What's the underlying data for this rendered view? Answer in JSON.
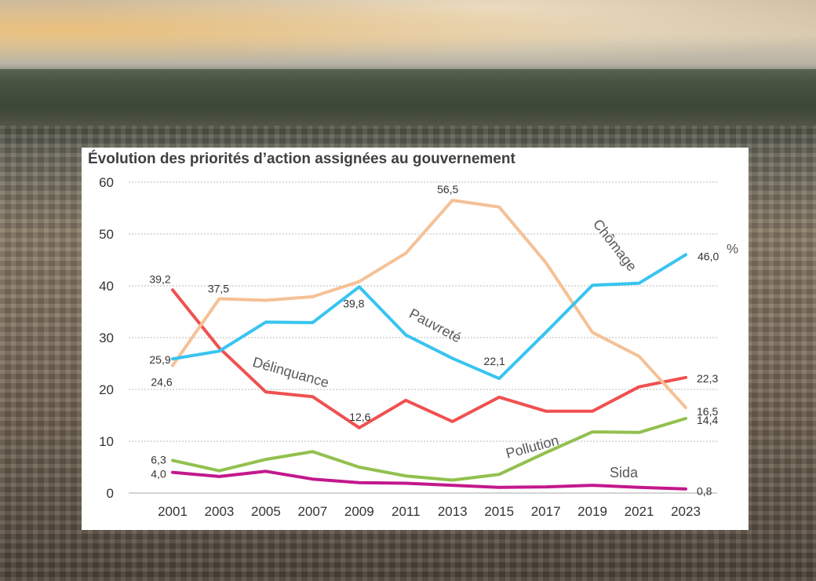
{
  "chart_data": {
    "type": "line",
    "title": "Évolution des priorités d’action assignées au gouvernement",
    "xlabel": "",
    "ylabel": "",
    "ylim": [
      0,
      60
    ],
    "y_ticks": [
      "0",
      "10",
      "20",
      "30",
      "40",
      "50",
      "60"
    ],
    "categories": [
      "2001",
      "2003",
      "2005",
      "2007",
      "2009",
      "2011",
      "2013",
      "2015",
      "2017",
      "2019",
      "2021",
      "2023"
    ],
    "grid": true,
    "series": [
      {
        "name": "Chômage",
        "color": "#f5c195",
        "values": [
          24.6,
          37.5,
          37.2,
          37.9,
          40.8,
          46.3,
          56.5,
          55.2,
          44.5,
          31.0,
          26.4,
          16.5
        ],
        "labels": [
          {
            "index": 0,
            "text": "24,6"
          },
          {
            "index": 1,
            "text": "37,5"
          },
          {
            "index": 6,
            "text": "56,5"
          },
          {
            "index": 11,
            "text": "16,5"
          }
        ]
      },
      {
        "name": "Pauvreté",
        "color": "#38c4f0",
        "values": [
          25.9,
          27.4,
          33.0,
          32.9,
          39.8,
          30.5,
          26.0,
          22.1,
          31.0,
          40.1,
          40.5,
          46.0
        ],
        "labels": [
          {
            "index": 0,
            "text": "25,9"
          },
          {
            "index": 4,
            "text": "39,8"
          },
          {
            "index": 7,
            "text": "22,1"
          },
          {
            "index": 11,
            "text": "46,0"
          }
        ]
      },
      {
        "name": "Délinquance",
        "color": "#f05050",
        "values": [
          39.2,
          28.0,
          19.5,
          18.6,
          12.6,
          17.9,
          13.8,
          18.5,
          15.8,
          15.8,
          20.5,
          22.3
        ],
        "labels": [
          {
            "index": 0,
            "text": "39,2"
          },
          {
            "index": 4,
            "text": "12,6"
          },
          {
            "index": 11,
            "text": "22,3"
          }
        ]
      },
      {
        "name": "Pollution",
        "color": "#92c04e",
        "values": [
          6.3,
          4.3,
          6.5,
          8.0,
          5.0,
          3.3,
          2.5,
          3.6,
          7.8,
          11.8,
          11.7,
          14.4
        ],
        "labels": [
          {
            "index": 0,
            "text": "6,3"
          },
          {
            "index": 11,
            "text": "14,4"
          }
        ]
      },
      {
        "name": "Sida",
        "color": "#c3188c",
        "values": [
          4.0,
          3.2,
          4.2,
          2.7,
          2.0,
          1.9,
          1.5,
          1.1,
          1.2,
          1.5,
          1.1,
          0.8
        ],
        "labels": [
          {
            "index": 0,
            "text": "4,0"
          },
          {
            "index": 11,
            "text": "0,8"
          }
        ]
      }
    ],
    "unit_label": "%",
    "annotations": [
      "Chômage",
      "Pauvreté",
      "Délinquance",
      "Pollution",
      "Sida"
    ]
  }
}
